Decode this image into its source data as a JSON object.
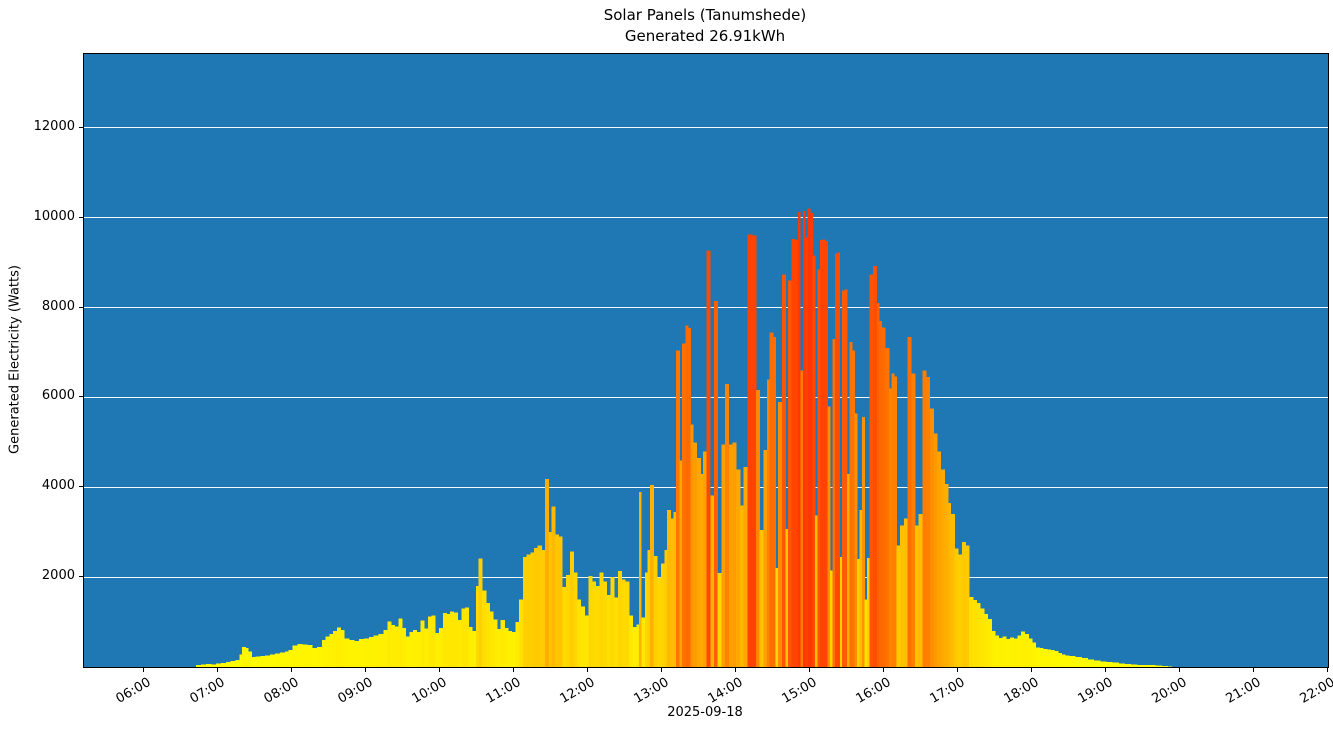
{
  "chart_data": {
    "type": "bar",
    "title": "Solar Panels (Tanumshede)",
    "subtitle": "Generated 26.91kWh",
    "xlabel": "2025-09-18",
    "ylabel": "Generated Electricity (Watts)",
    "unit": "W",
    "x_tick_labels": [
      "06:00",
      "07:00",
      "08:00",
      "09:00",
      "10:00",
      "11:00",
      "12:00",
      "13:00",
      "14:00",
      "15:00",
      "16:00",
      "17:00",
      "18:00",
      "19:00",
      "20:00",
      "21:00",
      "22:00"
    ],
    "y_tick_values": [
      2000,
      4000,
      6000,
      8000,
      10000,
      12000
    ],
    "x_range_minutes": [
      311,
      1320
    ],
    "ylim": [
      0,
      13644
    ],
    "grid": {
      "axis": "y",
      "color": "#ffffff"
    },
    "plot_background": "#1f77b4",
    "bar_colormap": {
      "name": "autumn_r",
      "vmin": 0,
      "vmax": 13000,
      "low_color": "#ffff00",
      "high_color": "#ff0000"
    },
    "points": [
      [
        "06:42",
        40
      ],
      [
        "06:46",
        60
      ],
      [
        "06:50",
        70
      ],
      [
        "06:54",
        60
      ],
      [
        "06:58",
        80
      ],
      [
        "07:02",
        90
      ],
      [
        "07:06",
        110
      ],
      [
        "07:10",
        130
      ],
      [
        "07:14",
        160
      ],
      [
        "07:17",
        280
      ],
      [
        "07:19",
        440
      ],
      [
        "07:22",
        420
      ],
      [
        "07:24",
        340
      ],
      [
        "07:27",
        220
      ],
      [
        "07:30",
        230
      ],
      [
        "07:34",
        250
      ],
      [
        "07:38",
        260
      ],
      [
        "07:42",
        280
      ],
      [
        "07:46",
        300
      ],
      [
        "07:50",
        320
      ],
      [
        "07:54",
        340
      ],
      [
        "07:57",
        380
      ],
      [
        "08:00",
        480
      ],
      [
        "08:04",
        510
      ],
      [
        "08:08",
        500
      ],
      [
        "08:12",
        490
      ],
      [
        "08:16",
        420
      ],
      [
        "08:20",
        440
      ],
      [
        "08:24",
        600
      ],
      [
        "08:27",
        680
      ],
      [
        "08:30",
        740
      ],
      [
        "08:33",
        800
      ],
      [
        "08:36",
        875
      ],
      [
        "08:39",
        820
      ],
      [
        "08:42",
        640
      ],
      [
        "08:46",
        600
      ],
      [
        "08:50",
        580
      ],
      [
        "08:54",
        620
      ],
      [
        "08:58",
        640
      ],
      [
        "09:02",
        670
      ],
      [
        "09:06",
        700
      ],
      [
        "09:10",
        740
      ],
      [
        "09:14",
        820
      ],
      [
        "09:17",
        1010
      ],
      [
        "09:20",
        930
      ],
      [
        "09:23",
        900
      ],
      [
        "09:26",
        1080
      ],
      [
        "09:29",
        870
      ],
      [
        "09:32",
        680
      ],
      [
        "09:35",
        780
      ],
      [
        "09:38",
        820
      ],
      [
        "09:41",
        780
      ],
      [
        "09:44",
        1040
      ],
      [
        "09:47",
        860
      ],
      [
        "09:50",
        1120
      ],
      [
        "09:53",
        1150
      ],
      [
        "09:56",
        760
      ],
      [
        "09:59",
        870
      ],
      [
        "10:02",
        1200
      ],
      [
        "10:05",
        1180
      ],
      [
        "10:08",
        1230
      ],
      [
        "10:11",
        1210
      ],
      [
        "10:14",
        1050
      ],
      [
        "10:17",
        1300
      ],
      [
        "10:20",
        1330
      ],
      [
        "10:23",
        890
      ],
      [
        "10:26",
        800
      ],
      [
        "10:29",
        1800
      ],
      [
        "10:31",
        2420
      ],
      [
        "10:34",
        1700
      ],
      [
        "10:37",
        1430
      ],
      [
        "10:40",
        1240
      ],
      [
        "10:43",
        1060
      ],
      [
        "10:46",
        850
      ],
      [
        "10:49",
        1050
      ],
      [
        "10:52",
        870
      ],
      [
        "10:55",
        800
      ],
      [
        "10:58",
        780
      ],
      [
        "11:01",
        1000
      ],
      [
        "11:04",
        1500
      ],
      [
        "11:07",
        2450
      ],
      [
        "11:10",
        2500
      ],
      [
        "11:13",
        2550
      ],
      [
        "11:16",
        2650
      ],
      [
        "11:19",
        2700
      ],
      [
        "11:22",
        2600
      ],
      [
        "11:25",
        4190
      ],
      [
        "11:28",
        3000
      ],
      [
        "11:30",
        3570
      ],
      [
        "11:33",
        2950
      ],
      [
        "11:36",
        2900
      ],
      [
        "11:39",
        1780
      ],
      [
        "11:42",
        2050
      ],
      [
        "11:45",
        2570
      ],
      [
        "11:48",
        2100
      ],
      [
        "11:51",
        1500
      ],
      [
        "11:54",
        1350
      ],
      [
        "11:57",
        1150
      ],
      [
        "12:00",
        2030
      ],
      [
        "12:03",
        1900
      ],
      [
        "12:06",
        1800
      ],
      [
        "12:09",
        2100
      ],
      [
        "12:12",
        1900
      ],
      [
        "12:15",
        1600
      ],
      [
        "12:18",
        2000
      ],
      [
        "12:21",
        1550
      ],
      [
        "12:24",
        2140
      ],
      [
        "12:27",
        1950
      ],
      [
        "12:30",
        1900
      ],
      [
        "12:33",
        1150
      ],
      [
        "12:36",
        890
      ],
      [
        "12:39",
        950
      ],
      [
        "12:41",
        3890
      ],
      [
        "12:43",
        1100
      ],
      [
        "12:46",
        2100
      ],
      [
        "12:48",
        2600
      ],
      [
        "12:50",
        4050
      ],
      [
        "12:53",
        2470
      ],
      [
        "12:56",
        1990
      ],
      [
        "12:59",
        2300
      ],
      [
        "13:02",
        2600
      ],
      [
        "13:04",
        3500
      ],
      [
        "13:07",
        3300
      ],
      [
        "13:09",
        3450
      ],
      [
        "13:11",
        7050
      ],
      [
        "13:14",
        4600
      ],
      [
        "13:16",
        7200
      ],
      [
        "13:19",
        7600
      ],
      [
        "13:21",
        7550
      ],
      [
        "13:23",
        5400
      ],
      [
        "13:25",
        5000
      ],
      [
        "13:28",
        4650
      ],
      [
        "13:31",
        4300
      ],
      [
        "13:33",
        4800
      ],
      [
        "13:36",
        9270
      ],
      [
        "13:39",
        3820
      ],
      [
        "13:42",
        8150
      ],
      [
        "13:45",
        2090
      ],
      [
        "13:48",
        4950
      ],
      [
        "13:51",
        6300
      ],
      [
        "13:54",
        4950
      ],
      [
        "13:57",
        5000
      ],
      [
        "14:00",
        4400
      ],
      [
        "14:03",
        3600
      ],
      [
        "14:06",
        4450
      ],
      [
        "14:09",
        9630
      ],
      [
        "14:13",
        9600
      ],
      [
        "14:16",
        6170
      ],
      [
        "14:19",
        3050
      ],
      [
        "14:22",
        4830
      ],
      [
        "14:25",
        6400
      ],
      [
        "14:27",
        7450
      ],
      [
        "14:30",
        7350
      ],
      [
        "14:32",
        2200
      ],
      [
        "14:34",
        5900
      ],
      [
        "14:37",
        8740
      ],
      [
        "14:40",
        3070
      ],
      [
        "14:42",
        8600
      ],
      [
        "14:45",
        9530
      ],
      [
        "14:48",
        9500
      ],
      [
        "14:50",
        10130
      ],
      [
        "14:52",
        6600
      ],
      [
        "14:54",
        10150
      ],
      [
        "14:56",
        9560
      ],
      [
        "14:58",
        10200
      ],
      [
        "15:00",
        10100
      ],
      [
        "15:02",
        9160
      ],
      [
        "15:04",
        3370
      ],
      [
        "15:06",
        8850
      ],
      [
        "15:08",
        9500
      ],
      [
        "15:10",
        9520
      ],
      [
        "15:12",
        9480
      ],
      [
        "15:14",
        5800
      ],
      [
        "15:16",
        2150
      ],
      [
        "15:18",
        7300
      ],
      [
        "15:20",
        9200
      ],
      [
        "15:22",
        9230
      ],
      [
        "15:24",
        2450
      ],
      [
        "15:26",
        8380
      ],
      [
        "15:28",
        8400
      ],
      [
        "15:30",
        4300
      ],
      [
        "15:32",
        7230
      ],
      [
        "15:34",
        7040
      ],
      [
        "15:36",
        5640
      ],
      [
        "15:38",
        2400
      ],
      [
        "15:40",
        3500
      ],
      [
        "15:42",
        5560
      ],
      [
        "15:44",
        1500
      ],
      [
        "15:46",
        2430
      ],
      [
        "15:48",
        8740
      ],
      [
        "15:51",
        8930
      ],
      [
        "15:54",
        8100
      ],
      [
        "15:56",
        7700
      ],
      [
        "15:58",
        7560
      ],
      [
        "16:01",
        7100
      ],
      [
        "16:04",
        6200
      ],
      [
        "16:06",
        6530
      ],
      [
        "16:08",
        6470
      ],
      [
        "16:10",
        2700
      ],
      [
        "16:13",
        3150
      ],
      [
        "16:16",
        3300
      ],
      [
        "16:19",
        7340
      ],
      [
        "16:22",
        6530
      ],
      [
        "16:25",
        3150
      ],
      [
        "16:28",
        3400
      ],
      [
        "16:31",
        6600
      ],
      [
        "16:34",
        6450
      ],
      [
        "16:37",
        5750
      ],
      [
        "16:40",
        5200
      ],
      [
        "16:43",
        4800
      ],
      [
        "16:46",
        4400
      ],
      [
        "16:49",
        4070
      ],
      [
        "16:52",
        3650
      ],
      [
        "16:54",
        3400
      ],
      [
        "16:57",
        2640
      ],
      [
        "17:00",
        2500
      ],
      [
        "17:03",
        2780
      ],
      [
        "17:06",
        2700
      ],
      [
        "17:09",
        1560
      ],
      [
        "17:12",
        1490
      ],
      [
        "17:15",
        1430
      ],
      [
        "17:18",
        1300
      ],
      [
        "17:21",
        1180
      ],
      [
        "17:24",
        1070
      ],
      [
        "17:27",
        800
      ],
      [
        "17:30",
        700
      ],
      [
        "17:33",
        650
      ],
      [
        "17:36",
        680
      ],
      [
        "17:39",
        620
      ],
      [
        "17:42",
        660
      ],
      [
        "17:45",
        640
      ],
      [
        "17:48",
        700
      ],
      [
        "17:51",
        790
      ],
      [
        "17:54",
        740
      ],
      [
        "17:57",
        640
      ],
      [
        "18:00",
        540
      ],
      [
        "18:03",
        430
      ],
      [
        "18:06",
        420
      ],
      [
        "18:09",
        400
      ],
      [
        "18:12",
        390
      ],
      [
        "18:15",
        380
      ],
      [
        "18:18",
        360
      ],
      [
        "18:21",
        310
      ],
      [
        "18:24",
        280
      ],
      [
        "18:27",
        260
      ],
      [
        "18:30",
        240
      ],
      [
        "18:35",
        220
      ],
      [
        "18:40",
        200
      ],
      [
        "18:45",
        170
      ],
      [
        "18:50",
        140
      ],
      [
        "18:55",
        120
      ],
      [
        "19:00",
        110
      ],
      [
        "19:05",
        95
      ],
      [
        "19:10",
        80
      ],
      [
        "19:15",
        70
      ],
      [
        "19:20",
        60
      ],
      [
        "19:25",
        50
      ],
      [
        "19:30",
        45
      ],
      [
        "19:35",
        40
      ],
      [
        "19:40",
        35
      ],
      [
        "19:45",
        25
      ],
      [
        "19:50",
        15
      ]
    ]
  }
}
